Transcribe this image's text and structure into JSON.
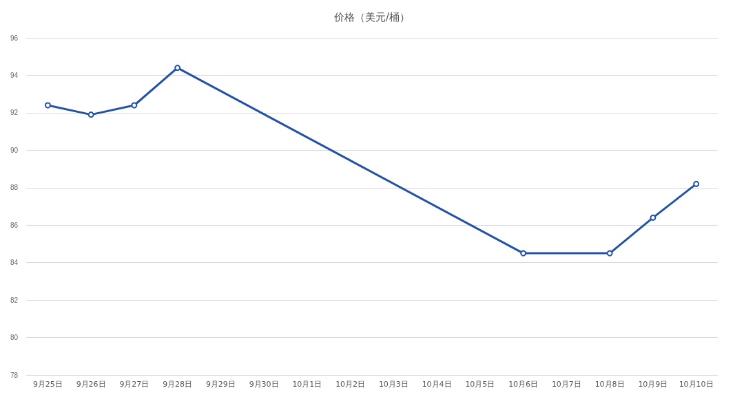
{
  "chart_data": {
    "type": "line",
    "title": "价格（美元/桶）",
    "categories": [
      "9月25日",
      "9月26日",
      "9月27日",
      "9月28日",
      "9月29日",
      "9月30日",
      "10月1日",
      "10月2日",
      "10月3日",
      "10月4日",
      "10月5日",
      "10月6日",
      "10月7日",
      "10月8日",
      "10月9日",
      "10月10日"
    ],
    "series": [
      {
        "color": "#2453a6",
        "values": [
          92.4,
          91.9,
          92.4,
          94.4,
          null,
          null,
          null,
          null,
          null,
          null,
          null,
          84.5,
          null,
          84.5,
          86.4,
          88.2
        ]
      }
    ],
    "ylim": [
      78,
      96
    ],
    "yticks": [
      78,
      80,
      82,
      84,
      86,
      88,
      90,
      92,
      94,
      96
    ],
    "grid": "y",
    "marker": "circle",
    "line_style": "solid"
  }
}
